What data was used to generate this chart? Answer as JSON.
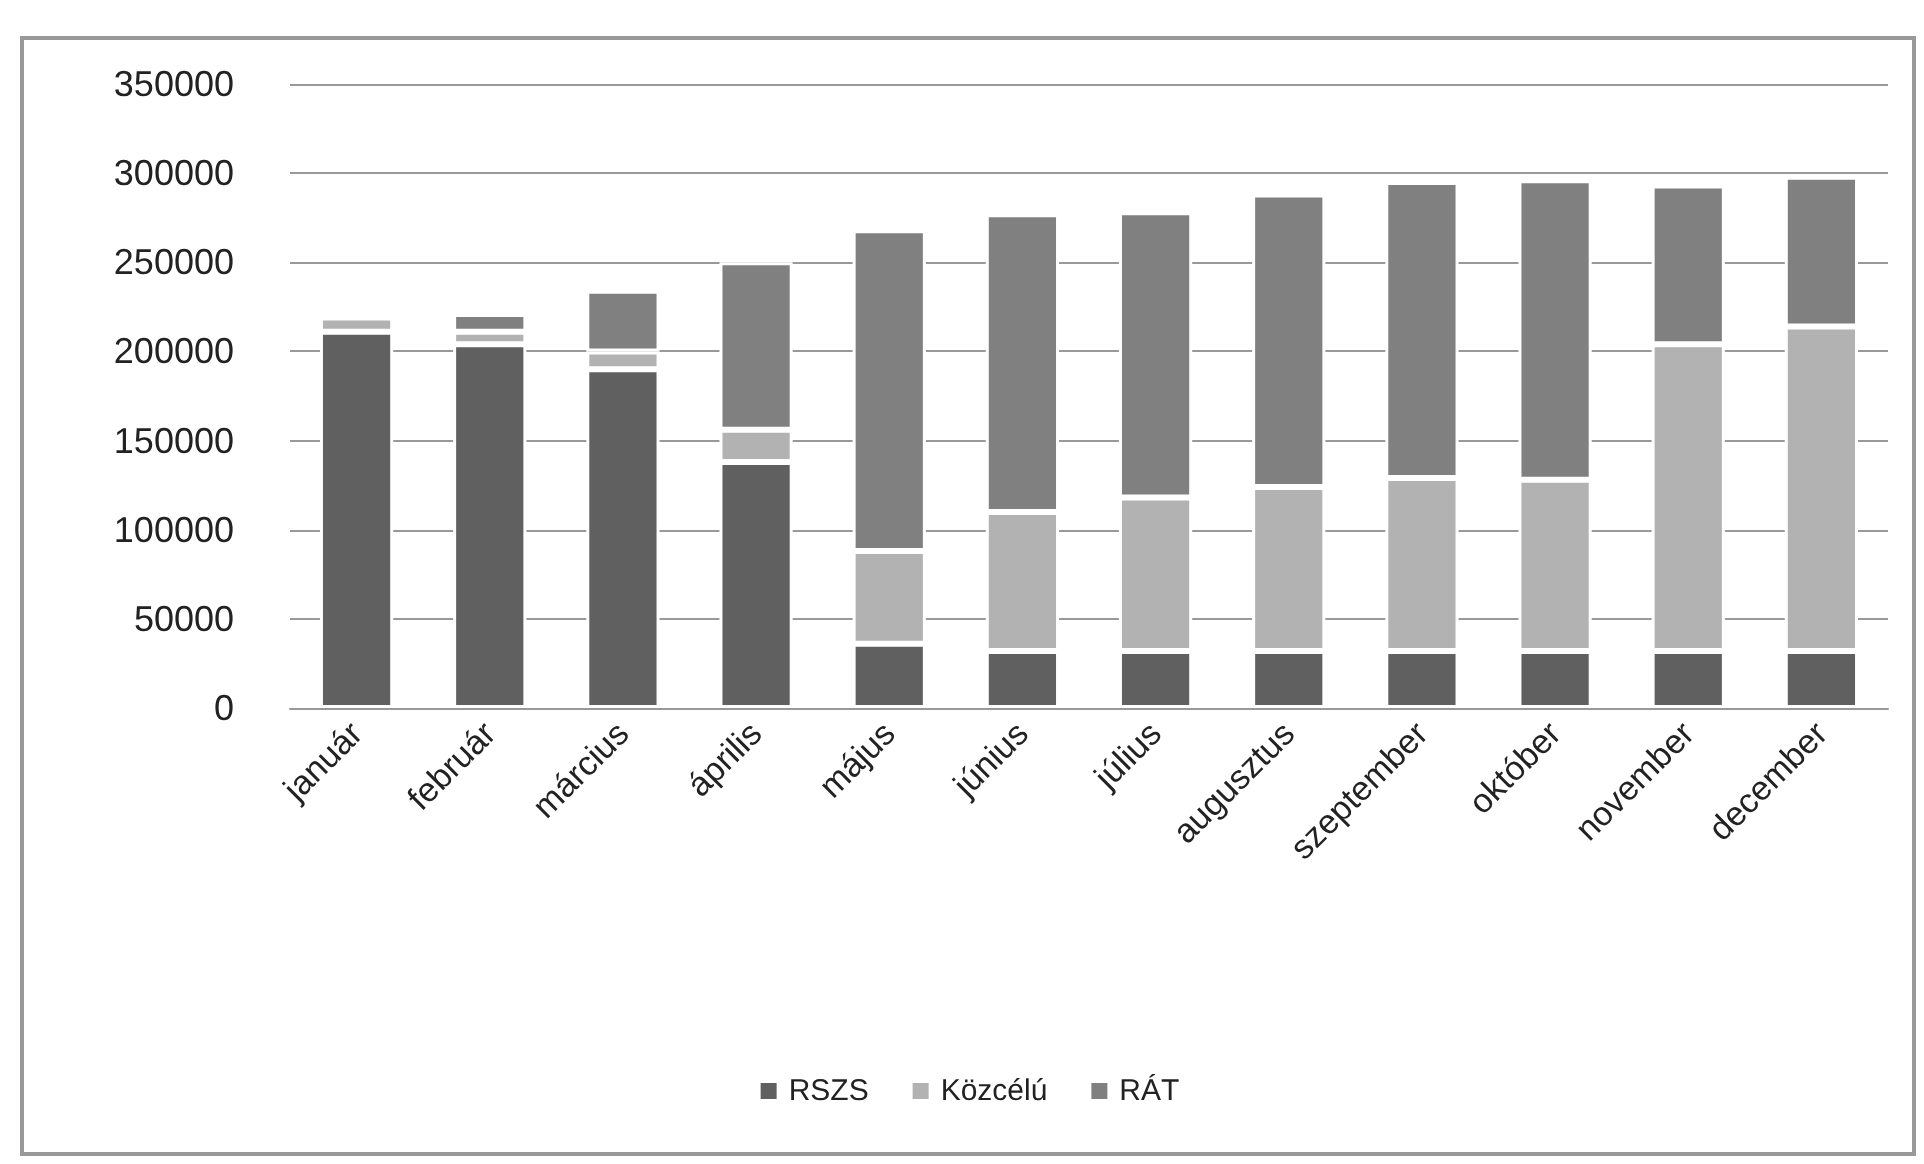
{
  "chart_data": {
    "type": "bar",
    "stacked": true,
    "categories": [
      "január",
      "február",
      "március",
      "április",
      "május",
      "június",
      "július",
      "augusztus",
      "szeptember",
      "október",
      "november",
      "december"
    ],
    "series": [
      {
        "name": "RSZS",
        "color": "#606060",
        "values": [
          211000,
          204000,
          190000,
          138000,
          36000,
          32000,
          32000,
          32000,
          32000,
          32000,
          32000,
          32000
        ]
      },
      {
        "name": "Közcélú",
        "color": "#b2b2b2",
        "values": [
          8000,
          7000,
          10000,
          18000,
          52000,
          78000,
          86000,
          92000,
          97000,
          96000,
          172000,
          182000
        ]
      },
      {
        "name": "RÁT",
        "color": "#808080",
        "values": [
          null,
          10000,
          34000,
          94000,
          180000,
          167000,
          160000,
          164000,
          166000,
          168000,
          89000,
          84000
        ]
      }
    ],
    "ylim": [
      0,
      350000
    ],
    "yticks": [
      0,
      50000,
      100000,
      150000,
      200000,
      250000,
      300000,
      350000
    ],
    "grid": "y",
    "legend": "bottom"
  }
}
